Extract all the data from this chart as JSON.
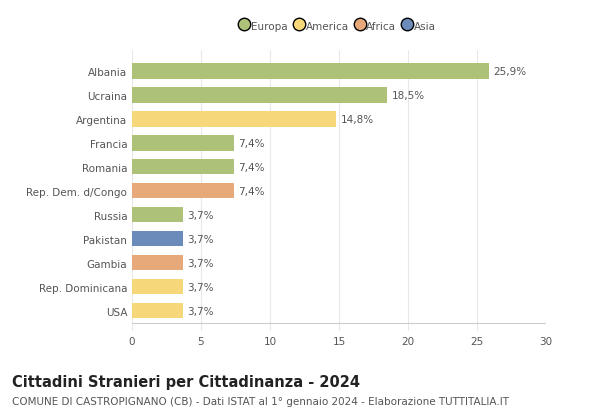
{
  "countries": [
    "Albania",
    "Ucraina",
    "Argentina",
    "Francia",
    "Romania",
    "Rep. Dem. d/Congo",
    "Russia",
    "Pakistan",
    "Gambia",
    "Rep. Dominicana",
    "USA"
  ],
  "values": [
    25.9,
    18.5,
    14.8,
    7.4,
    7.4,
    7.4,
    3.7,
    3.7,
    3.7,
    3.7,
    3.7
  ],
  "labels": [
    "25,9%",
    "18,5%",
    "14,8%",
    "7,4%",
    "7,4%",
    "7,4%",
    "3,7%",
    "3,7%",
    "3,7%",
    "3,7%",
    "3,7%"
  ],
  "continents": [
    "Europa",
    "Europa",
    "America",
    "Europa",
    "Europa",
    "Africa",
    "Europa",
    "Asia",
    "Africa",
    "America",
    "America"
  ],
  "colors": {
    "Europa": "#adc178",
    "America": "#f6d87a",
    "Africa": "#e8a97a",
    "Asia": "#6b8cba"
  },
  "legend_labels": [
    "Europa",
    "America",
    "Africa",
    "Asia"
  ],
  "legend_colors": [
    "#adc178",
    "#f6d87a",
    "#e8a97a",
    "#6b8cba"
  ],
  "title": "Cittadini Stranieri per Cittadinanza - 2024",
  "subtitle": "COMUNE DI CASTROPIGNANO (CB) - Dati ISTAT al 1° gennaio 2024 - Elaborazione TUTTITALIA.IT",
  "xlim": [
    0,
    30
  ],
  "xticks": [
    0,
    5,
    10,
    15,
    20,
    25,
    30
  ],
  "background_color": "#ffffff",
  "grid_color": "#e8e8e8",
  "bar_height": 0.65,
  "title_fontsize": 10.5,
  "subtitle_fontsize": 7.5,
  "label_fontsize": 7.5,
  "tick_fontsize": 7.5
}
